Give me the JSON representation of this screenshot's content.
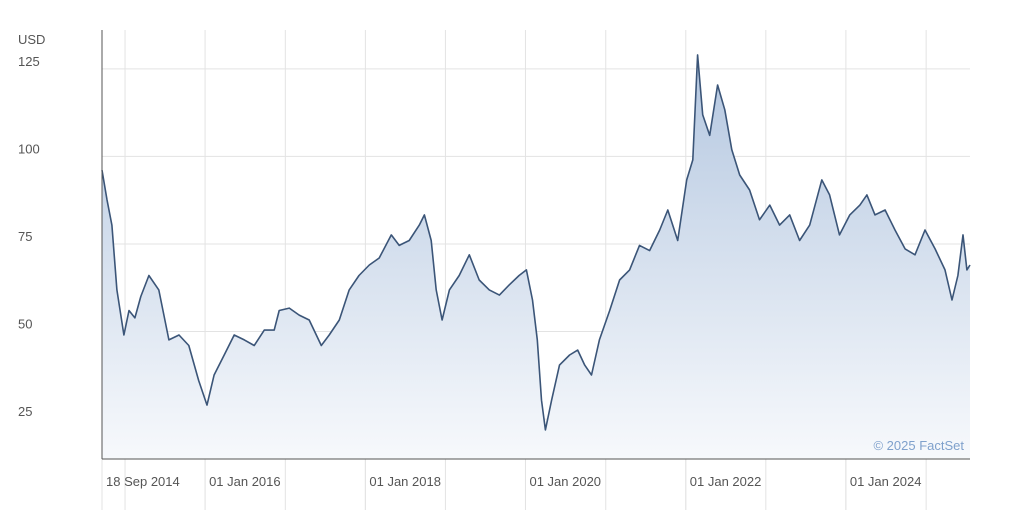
{
  "chart_data": {
    "type": "area",
    "y_axis_label": "USD",
    "credit": "© 2025 FactSet",
    "x": [
      "2014-09-18",
      "2014-10-11",
      "2014-11-02",
      "2014-11-25",
      "2014-12-27",
      "2015-01-19",
      "2015-02-15",
      "2015-03-14",
      "2015-04-20",
      "2015-06-04",
      "2015-07-20",
      "2015-09-04",
      "2015-10-19",
      "2015-12-03",
      "2016-01-10",
      "2016-02-11",
      "2016-03-28",
      "2016-05-13",
      "2016-06-28",
      "2016-08-12",
      "2016-09-27",
      "2016-11-11",
      "2016-12-04",
      "2017-01-19",
      "2017-03-05",
      "2017-04-20",
      "2017-06-14",
      "2017-07-20",
      "2017-09-04",
      "2017-10-19",
      "2017-12-03",
      "2018-01-19",
      "2018-03-05",
      "2018-04-29",
      "2018-06-04",
      "2018-07-20",
      "2018-09-04",
      "2018-09-27",
      "2018-10-28",
      "2018-11-20",
      "2018-12-17",
      "2019-01-19",
      "2019-03-05",
      "2019-04-20",
      "2019-06-04",
      "2019-07-20",
      "2019-09-04",
      "2019-10-19",
      "2019-12-03",
      "2020-01-05",
      "2020-02-02",
      "2020-02-24",
      "2020-03-14",
      "2020-04-01",
      "2020-04-29",
      "2020-06-04",
      "2020-07-20",
      "2020-08-26",
      "2020-09-27",
      "2020-10-28",
      "2020-12-03",
      "2021-01-19",
      "2021-03-05",
      "2021-04-20",
      "2021-06-04",
      "2021-07-20",
      "2021-09-04",
      "2021-10-11",
      "2021-11-25",
      "2022-01-05",
      "2022-02-02",
      "2022-02-24",
      "2022-03-19",
      "2022-04-20",
      "2022-05-26",
      "2022-06-28",
      "2022-07-30",
      "2022-09-04",
      "2022-10-19",
      "2022-12-03",
      "2023-01-19",
      "2023-03-05",
      "2023-04-20",
      "2023-06-04",
      "2023-07-20",
      "2023-09-13",
      "2023-10-19",
      "2023-12-03",
      "2024-01-19",
      "2024-03-05",
      "2024-04-06",
      "2024-05-13",
      "2024-06-28",
      "2024-08-12",
      "2024-09-27",
      "2024-11-11",
      "2024-12-27",
      "2025-02-11",
      "2025-03-28",
      "2025-04-29",
      "2025-05-26",
      "2025-06-18",
      "2025-07-06",
      "2025-07-20"
    ],
    "series": [
      {
        "color": "#3b5578",
        "values": [
          96.1,
          87.6,
          80.4,
          61.9,
          49,
          56,
          53.9,
          60,
          66,
          61.9,
          47.6,
          49,
          46,
          36,
          29,
          37.6,
          43.3,
          49,
          47.6,
          46,
          50.4,
          50.4,
          56,
          56.7,
          54.7,
          53.3,
          46,
          49,
          53.3,
          61.9,
          66,
          69,
          71,
          77.6,
          74.6,
          76,
          80.4,
          83.3,
          76,
          61.9,
          53.3,
          61.9,
          66,
          71.9,
          64.7,
          61.9,
          60.4,
          63.3,
          66,
          67.6,
          59,
          47.6,
          30.4,
          21.9,
          30.4,
          40.4,
          43.3,
          44.7,
          40.4,
          37.6,
          47.6,
          56,
          64.7,
          67.6,
          74.6,
          73.1,
          79,
          84.7,
          76,
          93.3,
          99,
          129,
          111.9,
          106,
          120.4,
          113.3,
          101.9,
          94.7,
          90.4,
          81.9,
          86.1,
          80.4,
          83.3,
          76,
          80.4,
          93.3,
          89,
          77.6,
          83.3,
          86.1,
          89,
          83.3,
          84.7,
          79,
          73.6,
          71.9,
          79,
          73.6,
          67.6,
          59,
          66,
          77.6,
          67.6,
          69
        ]
      }
    ],
    "xlim": [
      "2014-09-18",
      "2025-07-20"
    ],
    "xticks": [
      {
        "value": "2014-09-18",
        "label": "18 Sep 2014"
      },
      {
        "value": "2016-01-01",
        "label": "01 Jan 2016"
      },
      {
        "value": "2018-01-01",
        "label": "01 Jan 2018"
      },
      {
        "value": "2020-01-01",
        "label": "01 Jan 2020"
      },
      {
        "value": "2022-01-01",
        "label": "01 Jan 2022"
      },
      {
        "value": "2024-01-01",
        "label": "01 Jan 2024"
      }
    ],
    "x_gridlines": [
      "2015-01-01",
      "2016-01-01",
      "2017-01-01",
      "2018-01-01",
      "2019-01-01",
      "2020-01-01",
      "2021-01-01",
      "2022-01-01",
      "2023-01-01",
      "2024-01-01",
      "2025-01-01"
    ],
    "ylim": [
      13.6,
      136.1
    ],
    "yticks": [
      25,
      50,
      75,
      100,
      125
    ],
    "grid": true
  }
}
